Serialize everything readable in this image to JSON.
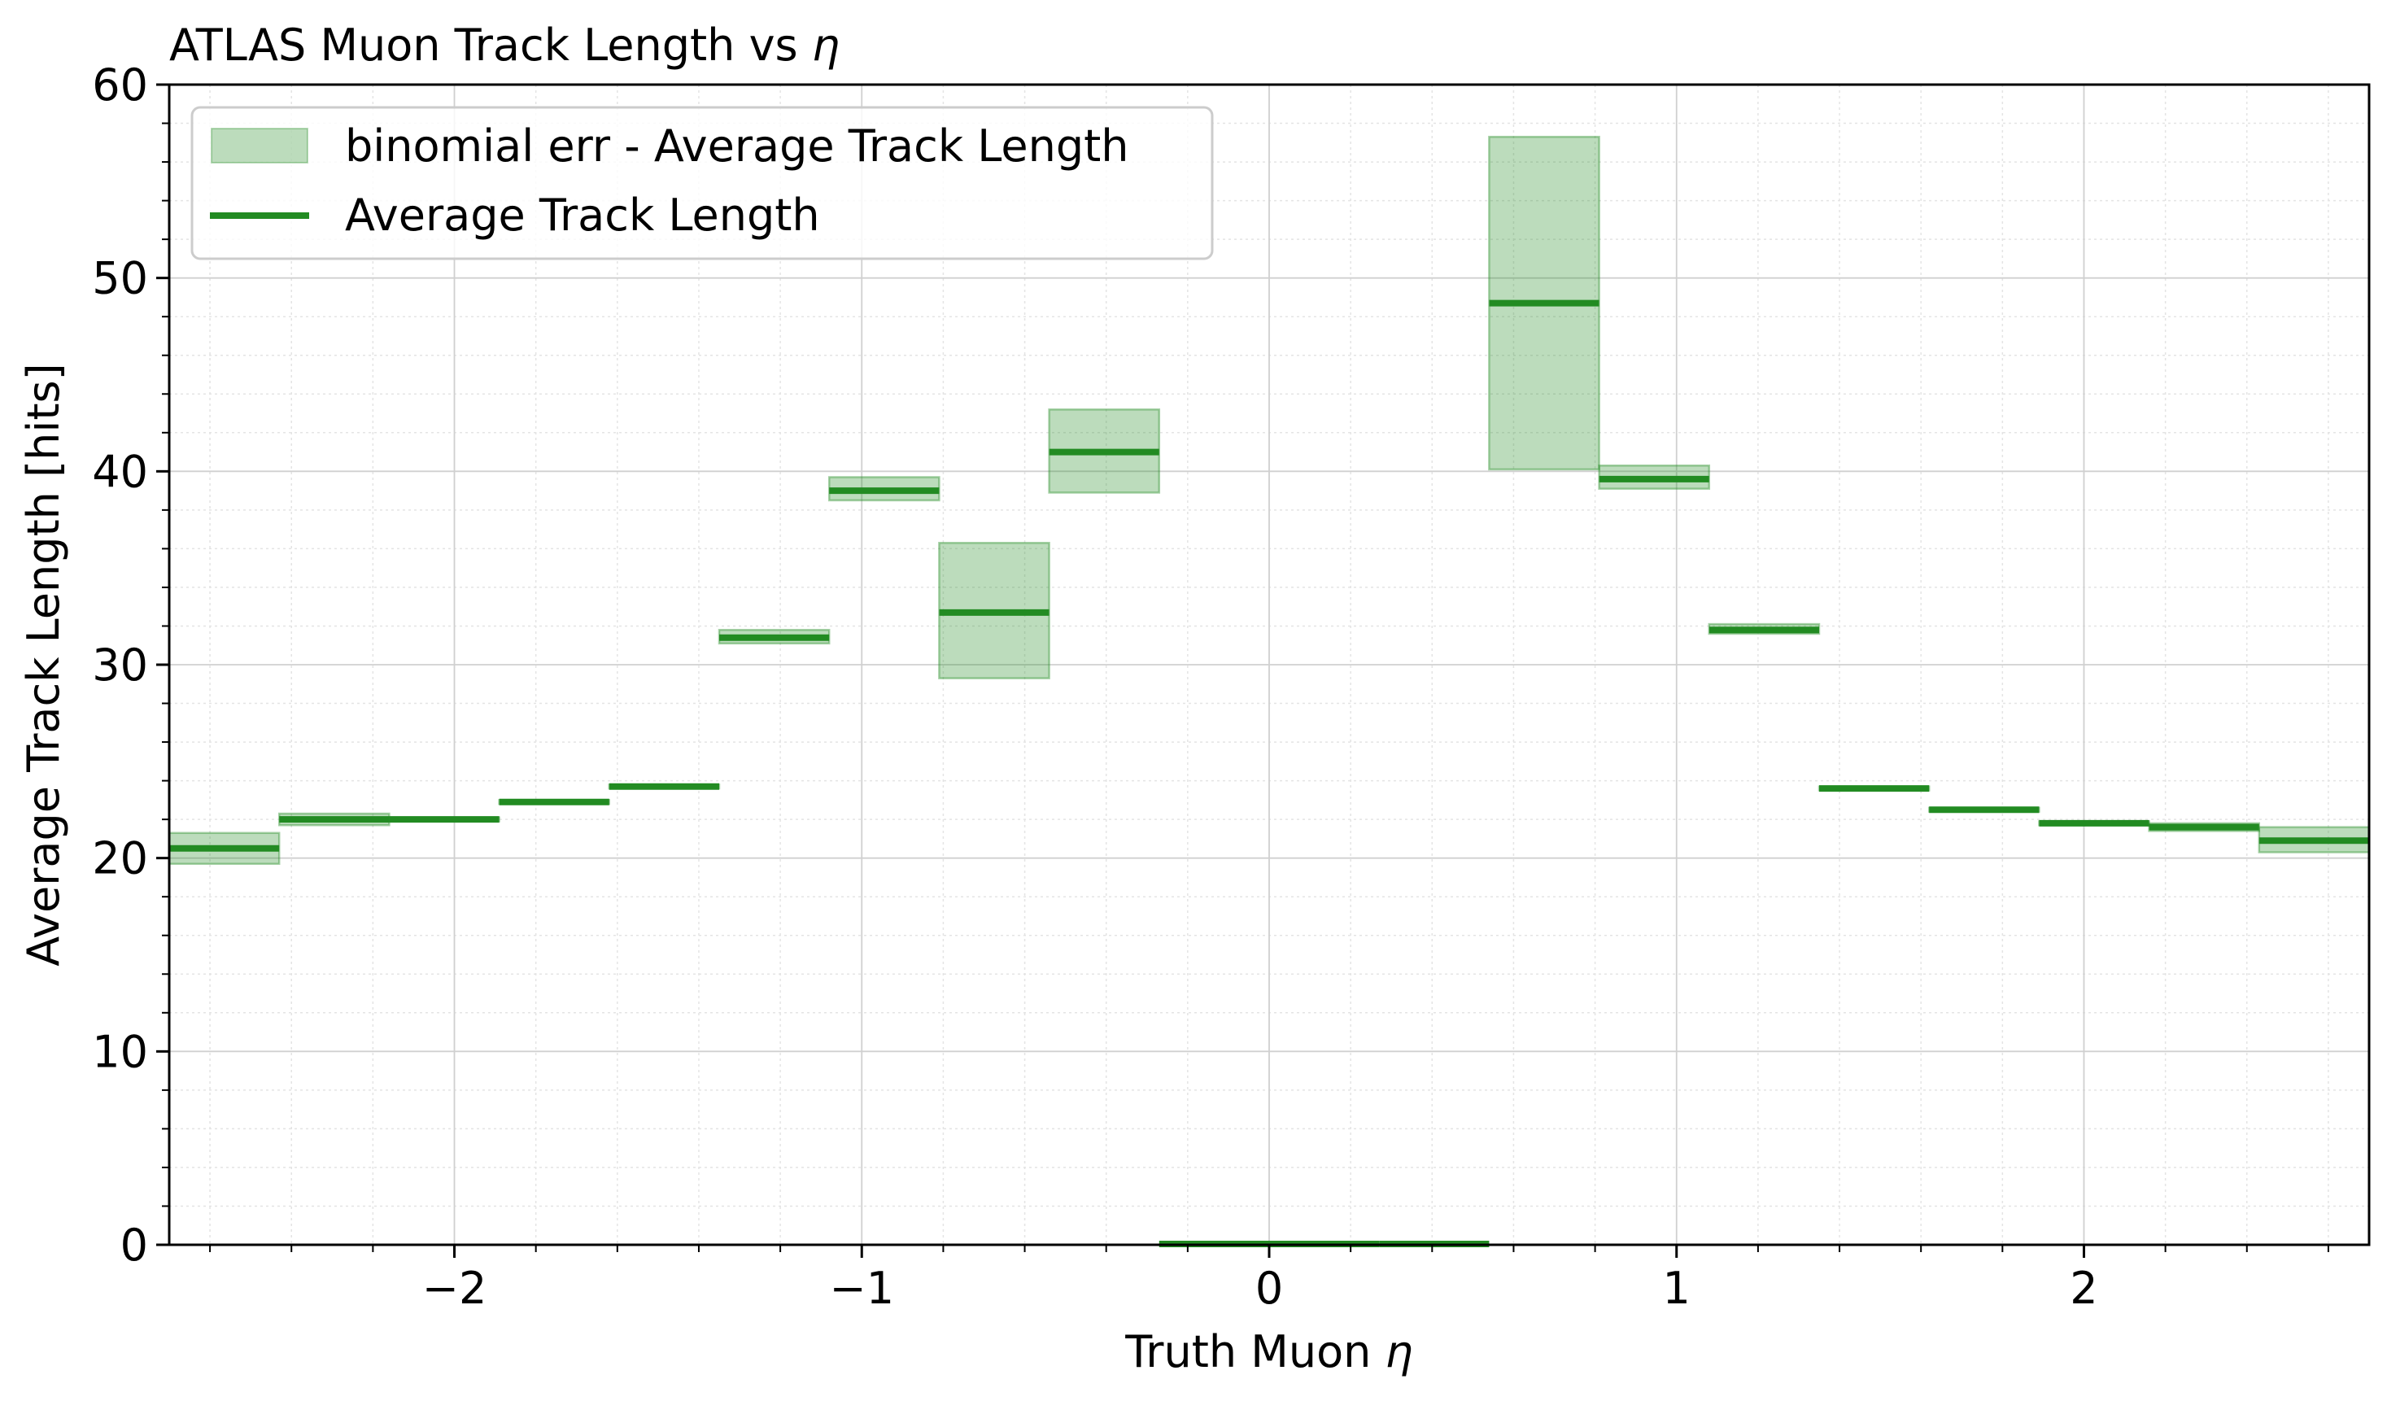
{
  "chart_data": {
    "type": "line",
    "title": "ATLAS Muon Track Length vs ",
    "title_symbol": "η",
    "xlabel": "Truth Muon ",
    "xlabel_symbol": "η",
    "ylabel": "Average Track Length [hits]",
    "xlim": [
      -2.7,
      2.7
    ],
    "ylim": [
      0,
      60
    ],
    "xticks": [
      -2,
      -1,
      0,
      1,
      2
    ],
    "xtick_labels": [
      "−2",
      "−1",
      "0",
      "1",
      "2"
    ],
    "yticks": [
      0,
      10,
      20,
      30,
      40,
      50,
      60
    ],
    "ytick_labels": [
      "0",
      "10",
      "20",
      "30",
      "40",
      "50",
      "60"
    ],
    "grid": true,
    "minor_grid": true,
    "legend_position": "top-left",
    "colors": {
      "line": "#228b22",
      "band": "#228b22",
      "band_opacity": 0.3
    },
    "series": [
      {
        "name": "Average Track Length",
        "bins": [
          {
            "x0": -2.7,
            "x1": -2.43,
            "value": 20.5
          },
          {
            "x0": -2.43,
            "x1": -2.16,
            "value": 22.0
          },
          {
            "x0": -2.16,
            "x1": -1.89,
            "value": 22.0
          },
          {
            "x0": -1.89,
            "x1": -1.62,
            "value": 22.9
          },
          {
            "x0": -1.62,
            "x1": -1.35,
            "value": 23.7
          },
          {
            "x0": -1.35,
            "x1": -1.08,
            "value": 31.4
          },
          {
            "x0": -1.08,
            "x1": -0.81,
            "value": 39.0
          },
          {
            "x0": -0.81,
            "x1": -0.54,
            "value": 32.7
          },
          {
            "x0": -0.54,
            "x1": -0.27,
            "value": 41.0
          },
          {
            "x0": -0.27,
            "x1": 0.0,
            "value": 0.0
          },
          {
            "x0": 0.0,
            "x1": 0.27,
            "value": 0.0
          },
          {
            "x0": 0.27,
            "x1": 0.54,
            "value": 0.0
          },
          {
            "x0": 0.54,
            "x1": 0.81,
            "value": 48.7
          },
          {
            "x0": 0.81,
            "x1": 1.08,
            "value": 39.6
          },
          {
            "x0": 1.08,
            "x1": 1.35,
            "value": 31.8
          },
          {
            "x0": 1.35,
            "x1": 1.62,
            "value": 23.6
          },
          {
            "x0": 1.62,
            "x1": 1.89,
            "value": 22.5
          },
          {
            "x0": 1.89,
            "x1": 2.16,
            "value": 21.8
          },
          {
            "x0": 2.16,
            "x1": 2.43,
            "value": 21.6
          },
          {
            "x0": 2.43,
            "x1": 2.7,
            "value": 20.9
          }
        ]
      },
      {
        "name": "binomial err - Average Track Length",
        "bands": [
          {
            "x0": -2.7,
            "x1": -2.43,
            "low": 19.7,
            "high": 21.3
          },
          {
            "x0": -2.43,
            "x1": -2.16,
            "low": 21.7,
            "high": 22.3
          },
          {
            "x0": -2.16,
            "x1": -1.89,
            "low": 21.9,
            "high": 22.1
          },
          {
            "x0": -1.89,
            "x1": -1.62,
            "low": 22.8,
            "high": 23.0
          },
          {
            "x0": -1.62,
            "x1": -1.35,
            "low": 23.6,
            "high": 23.8
          },
          {
            "x0": -1.35,
            "x1": -1.08,
            "low": 31.1,
            "high": 31.8
          },
          {
            "x0": -1.08,
            "x1": -0.81,
            "low": 38.5,
            "high": 39.7
          },
          {
            "x0": -0.81,
            "x1": -0.54,
            "low": 29.3,
            "high": 36.3
          },
          {
            "x0": -0.54,
            "x1": -0.27,
            "low": 38.9,
            "high": 43.2
          },
          {
            "x0": 0.54,
            "x1": 0.81,
            "low": 40.1,
            "high": 57.3
          },
          {
            "x0": 0.81,
            "x1": 1.08,
            "low": 39.1,
            "high": 40.3
          },
          {
            "x0": 1.08,
            "x1": 1.35,
            "low": 31.6,
            "high": 32.1
          },
          {
            "x0": 1.35,
            "x1": 1.62,
            "low": 23.5,
            "high": 23.7
          },
          {
            "x0": 1.62,
            "x1": 1.89,
            "low": 22.4,
            "high": 22.6
          },
          {
            "x0": 1.89,
            "x1": 2.16,
            "low": 21.7,
            "high": 21.9
          },
          {
            "x0": 2.16,
            "x1": 2.43,
            "low": 21.4,
            "high": 21.8
          },
          {
            "x0": 2.43,
            "x1": 2.7,
            "low": 20.3,
            "high": 21.6
          }
        ]
      }
    ]
  }
}
